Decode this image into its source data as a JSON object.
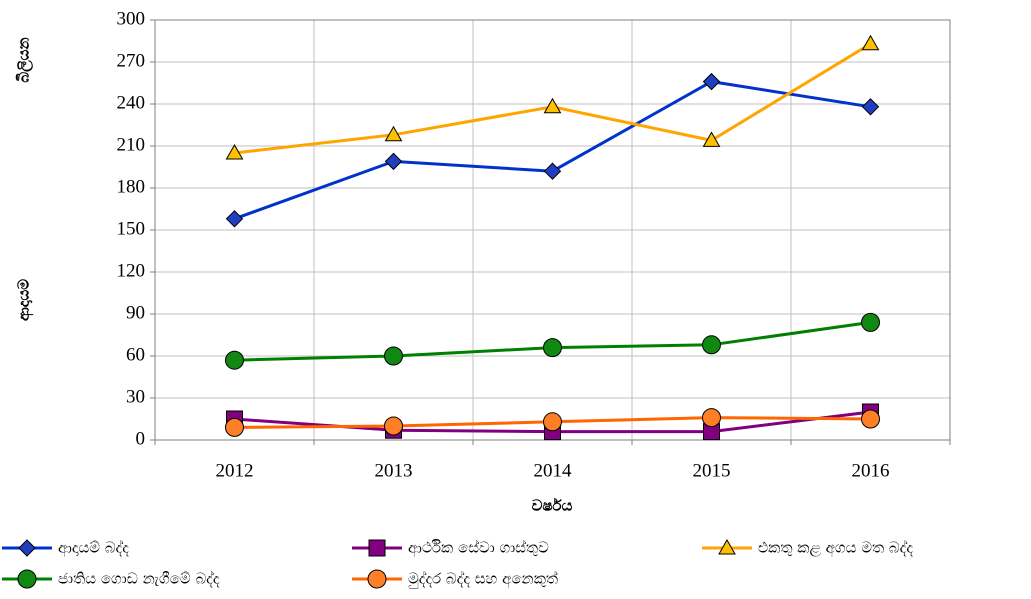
{
  "chart_data": {
    "type": "line",
    "categories": [
      "2012",
      "2013",
      "2014",
      "2015",
      "2016"
    ],
    "series": [
      {
        "name": "ආදායම් බද්ද",
        "color": "#0033cc",
        "marker": "diamond",
        "marker_color": "#1f3fbf",
        "values": [
          158,
          199,
          192,
          256,
          238
        ]
      },
      {
        "name": "ආර්ථික සේවා ගාස්තුව",
        "color": "#800080",
        "marker": "square",
        "marker_color": "#800080",
        "values": [
          15,
          7,
          6,
          6,
          20
        ]
      },
      {
        "name": "එකතු කළ අගය මත බද්ද",
        "color": "#ffa500",
        "marker": "triangle",
        "marker_color": "#ffc000",
        "values": [
          205,
          218,
          238,
          214,
          283
        ]
      },
      {
        "name": "ජාතිය ගොඩ නැගීමේ බද්ද",
        "color": "#008000",
        "marker": "circle",
        "marker_color": "#118811",
        "values": [
          57,
          60,
          66,
          68,
          84
        ]
      },
      {
        "name": "මුද්දර බද්ද සහ අනෙකුත්",
        "color": "#ff6600",
        "marker": "circle",
        "marker_color": "#ff7f27",
        "values": [
          9,
          10,
          13,
          16,
          15
        ]
      }
    ],
    "xlabel": "වර්ෂය",
    "ylabel": "ආදායම",
    "ylabel_unit": "බිලියන",
    "ylim": [
      0,
      300
    ],
    "yticks": [
      0,
      30,
      60,
      90,
      120,
      150,
      180,
      210,
      240,
      270,
      300
    ],
    "grid": true,
    "legend": "bottom"
  }
}
